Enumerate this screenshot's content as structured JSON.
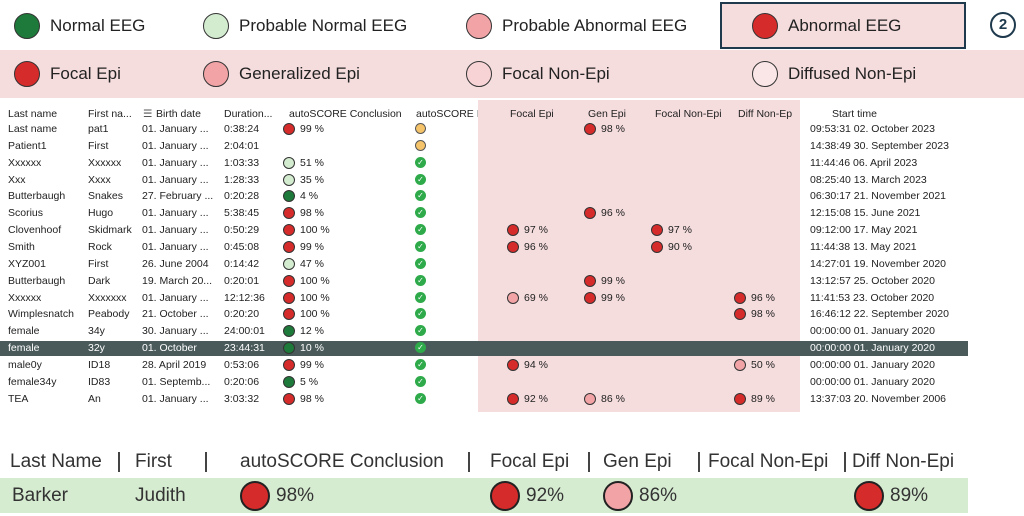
{
  "legend_conclusion": [
    {
      "label": "Normal EEG",
      "color": "#1e7a3a"
    },
    {
      "label": "Probable Normal EEG",
      "color": "#d3ecd0"
    },
    {
      "label": "Probable Abnormal EEG",
      "color": "#f2a3a6"
    },
    {
      "label": "Abnormal EEG",
      "color": "#d62b2b",
      "highlighted": true
    }
  ],
  "badge": "2",
  "legend_type": [
    {
      "label": "Focal Epi",
      "color": "#d62b2b"
    },
    {
      "label": "Generalized Epi",
      "color": "#f2a3a6"
    },
    {
      "label": "Focal Non-Epi",
      "color": "#f8d3d5"
    },
    {
      "label": "Diffused Non-Epi",
      "color": "#fbe6e7"
    }
  ],
  "table": {
    "headers": [
      "Last name",
      "First na...",
      "Birth date",
      "Duration...",
      "autoSCORE Conclusion",
      "autoSCORE Info",
      "Focal Epi",
      "Gen Epi",
      "Focal Non-Epi",
      "Diff Non-Ep",
      "Start time"
    ],
    "rows": [
      {
        "last": "Last name",
        "first": "pat1",
        "birth": "01. January ...",
        "duration": "0:38:24",
        "conclusion": {
          "text": "99 %",
          "color": "#d62b2b"
        },
        "info": "warning",
        "gen": {
          "text": "98 %",
          "color": "#d62b2b"
        },
        "start": "09:53:31 02. October 2023"
      },
      {
        "last": "Patient1",
        "first": "First",
        "birth": "01. January ...",
        "duration": "2:04:01",
        "info": "warning",
        "start": "14:38:49 30. September 2023"
      },
      {
        "last": "Xxxxxx",
        "first": "Xxxxxx",
        "birth": "01. January ...",
        "duration": "1:03:33",
        "conclusion": {
          "text": "51 %",
          "color": "#d3ecd0"
        },
        "info": "check",
        "start": "11:44:46 06. April 2023"
      },
      {
        "last": "Xxx",
        "first": "Xxxx",
        "birth": "01. January ...",
        "duration": "1:28:33",
        "conclusion": {
          "text": "35 %",
          "color": "#d3ecd0"
        },
        "info": "check",
        "start": "08:25:40 13. March 2023"
      },
      {
        "last": "Butterbaugh",
        "first": "Snakes",
        "birth": "27. February ...",
        "duration": "0:20:28",
        "conclusion": {
          "text": "4 %",
          "color": "#1e7a3a"
        },
        "info": "check",
        "start": "06:30:17 21. November 2021"
      },
      {
        "last": "Scorius",
        "first": "Hugo",
        "birth": "01. January ...",
        "duration": "5:38:45",
        "conclusion": {
          "text": "98 %",
          "color": "#d62b2b"
        },
        "info": "check",
        "gen": {
          "text": "96 %",
          "color": "#d62b2b"
        },
        "start": "12:15:08 15. June 2021"
      },
      {
        "last": "Clovenhoof",
        "first": "Skidmark",
        "birth": "01. January ...",
        "duration": "0:50:29",
        "conclusion": {
          "text": "100 %",
          "color": "#d62b2b"
        },
        "info": "check",
        "focal": {
          "text": "97 %",
          "color": "#d62b2b"
        },
        "focal_non": {
          "text": "97 %",
          "color": "#d62b2b"
        },
        "start": "09:12:00 17. May 2021"
      },
      {
        "last": "Smith",
        "first": "Rock",
        "birth": "01. January ...",
        "duration": "0:45:08",
        "conclusion": {
          "text": "99 %",
          "color": "#d62b2b"
        },
        "info": "check",
        "focal": {
          "text": "96 %",
          "color": "#d62b2b"
        },
        "focal_non": {
          "text": "90 %",
          "color": "#d62b2b"
        },
        "start": "11:44:38 13. May 2021"
      },
      {
        "last": "XYZ001",
        "first": "First",
        "birth": "26. June 2004",
        "duration": "0:14:42",
        "conclusion": {
          "text": "47 %",
          "color": "#d3ecd0"
        },
        "info": "check",
        "start": "14:27:01 19. November 2020"
      },
      {
        "last": "Butterbaugh",
        "first": "Dark",
        "birth": "19. March 20...",
        "duration": "0:20:01",
        "conclusion": {
          "text": "100 %",
          "color": "#d62b2b"
        },
        "info": "check",
        "gen": {
          "text": "99 %",
          "color": "#d62b2b"
        },
        "start": "13:12:57 25. October 2020"
      },
      {
        "last": "Xxxxxx",
        "first": "Xxxxxxx",
        "birth": "01. January ...",
        "duration": "12:12:36",
        "conclusion": {
          "text": "100 %",
          "color": "#d62b2b"
        },
        "info": "check",
        "focal": {
          "text": "69 %",
          "color": "#f2a3a6"
        },
        "gen": {
          "text": "99 %",
          "color": "#d62b2b"
        },
        "diff": {
          "text": "96 %",
          "color": "#d62b2b"
        },
        "start": "11:41:53 23. October 2020"
      },
      {
        "last": "Wimplesnatch",
        "first": "Peabody",
        "birth": "21. October ...",
        "duration": "0:20:20",
        "conclusion": {
          "text": "100 %",
          "color": "#d62b2b"
        },
        "info": "check",
        "diff": {
          "text": "98 %",
          "color": "#d62b2b"
        },
        "start": "16:46:12 22. September 2020"
      },
      {
        "last": "female",
        "first": "34y",
        "birth": "30. January ...",
        "duration": "24:00:01",
        "conclusion": {
          "text": "12 %",
          "color": "#1e7a3a"
        },
        "info": "check",
        "start": "00:00:00 01. January 2020"
      },
      {
        "last": "female",
        "first": "32y",
        "birth": "01. October",
        "duration": "23:44:31",
        "conclusion": {
          "text": "10 %",
          "color": "#1e7a3a"
        },
        "info": "check",
        "start": "00:00:00 01. January 2020",
        "selected": true
      },
      {
        "last": "male0y",
        "first": "ID18",
        "birth": "28. April 2019",
        "duration": "0:53:06",
        "conclusion": {
          "text": "99 %",
          "color": "#d62b2b"
        },
        "info": "check",
        "focal": {
          "text": "94 %",
          "color": "#d62b2b"
        },
        "diff": {
          "text": "50 %",
          "color": "#f2a3a6"
        },
        "start": "00:00:00 01. January 2020"
      },
      {
        "last": "female34y",
        "first": "ID83",
        "birth": "01. Septemb...",
        "duration": "0:20:06",
        "conclusion": {
          "text": "5 %",
          "color": "#1e7a3a"
        },
        "info": "check",
        "start": "00:00:00 01. January 2020"
      },
      {
        "last": "TEA",
        "first": "An",
        "birth": "01. January ...",
        "duration": "3:03:32",
        "conclusion": {
          "text": "98 %",
          "color": "#d62b2b"
        },
        "info": "check",
        "focal": {
          "text": "92 %",
          "color": "#d62b2b"
        },
        "gen": {
          "text": "86 %",
          "color": "#f2a3a6"
        },
        "diff": {
          "text": "89 %",
          "color": "#d62b2b"
        },
        "start": "13:37:03 20. November 2006"
      }
    ]
  },
  "summary": {
    "headers": [
      "Last Name",
      "First",
      "autoSCORE Conclusion",
      "Focal Epi",
      "Gen Epi",
      "Focal Non-Epi",
      "Diff Non-Epi"
    ],
    "row": {
      "last": "Barker",
      "first": "Judith",
      "conclusion": {
        "text": "98%",
        "color": "#d62b2b"
      },
      "focal": {
        "text": "92%",
        "color": "#d62b2b"
      },
      "gen": {
        "text": "86%",
        "color": "#f2a3a6"
      },
      "diff": {
        "text": "89%",
        "color": "#d62b2b"
      }
    }
  }
}
